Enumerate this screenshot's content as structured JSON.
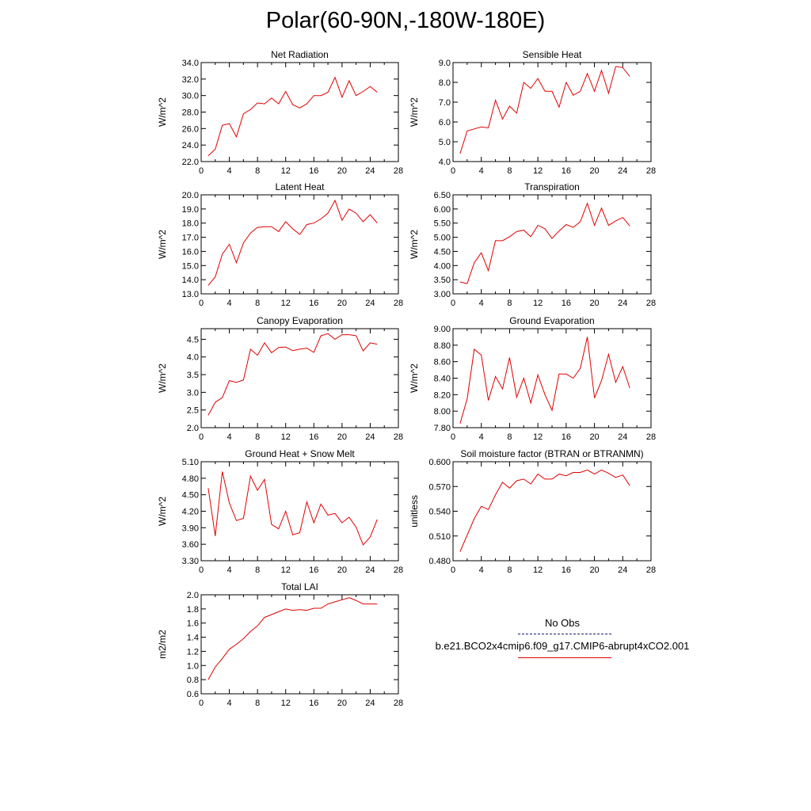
{
  "title": "Polar(60-90N,-180W-180E)",
  "chart_data": [
    {
      "type": "line",
      "title": "Net Radiation",
      "ylabel": "W/m^2",
      "xlim": [
        0,
        28
      ],
      "ylim": [
        22.0,
        34.0
      ],
      "xticks": [
        "0",
        "4",
        "8",
        "12",
        "16",
        "20",
        "24",
        "28"
      ],
      "yticks": [
        "22.0",
        "24.0",
        "26.0",
        "28.0",
        "30.0",
        "32.0",
        "34.0"
      ],
      "x": [
        1,
        2,
        3,
        4,
        5,
        6,
        7,
        8,
        9,
        10,
        11,
        12,
        13,
        14,
        15,
        16,
        17,
        18,
        19,
        20,
        21,
        22,
        23,
        24,
        25
      ],
      "series": [
        {
          "values": [
            22.7,
            23.5,
            26.4,
            26.6,
            25.0,
            27.8,
            28.3,
            29.1,
            29.0,
            29.7,
            29.0,
            30.5,
            28.9,
            28.5,
            29.0,
            30.0,
            30.0,
            30.4,
            32.2,
            29.8,
            31.8,
            30.0,
            30.5,
            31.1,
            30.4
          ]
        }
      ]
    },
    {
      "type": "line",
      "title": "Sensible Heat",
      "ylabel": "W/m^2",
      "xlim": [
        0,
        28
      ],
      "ylim": [
        4.0,
        9.0
      ],
      "xticks": [
        "0",
        "4",
        "8",
        "12",
        "16",
        "20",
        "24",
        "28"
      ],
      "yticks": [
        "4.0",
        "5.0",
        "6.0",
        "7.0",
        "8.0",
        "9.0"
      ],
      "x": [
        1,
        2,
        3,
        4,
        5,
        6,
        7,
        8,
        9,
        10,
        11,
        12,
        13,
        14,
        15,
        16,
        17,
        18,
        19,
        20,
        21,
        22,
        23,
        24,
        25
      ],
      "series": [
        {
          "values": [
            4.4,
            5.55,
            5.65,
            5.75,
            5.7,
            7.1,
            6.15,
            6.8,
            6.45,
            8.0,
            7.7,
            8.2,
            7.55,
            7.55,
            6.75,
            8.0,
            7.35,
            7.55,
            8.45,
            7.55,
            8.6,
            7.45,
            8.8,
            8.75,
            8.3
          ]
        }
      ]
    },
    {
      "type": "line",
      "title": "Latent Heat",
      "ylabel": "W/m^2",
      "xlim": [
        0,
        28
      ],
      "ylim": [
        13.0,
        20.0
      ],
      "xticks": [
        "0",
        "4",
        "8",
        "12",
        "16",
        "20",
        "24",
        "28"
      ],
      "yticks": [
        "13.0",
        "14.0",
        "15.0",
        "16.0",
        "17.0",
        "18.0",
        "19.0",
        "20.0"
      ],
      "x": [
        1,
        2,
        3,
        4,
        5,
        6,
        7,
        8,
        9,
        10,
        11,
        12,
        13,
        14,
        15,
        16,
        17,
        18,
        19,
        20,
        21,
        22,
        23,
        24,
        25
      ],
      "series": [
        {
          "values": [
            13.6,
            14.2,
            15.8,
            16.5,
            15.2,
            16.6,
            17.3,
            17.7,
            17.75,
            17.75,
            17.4,
            18.1,
            17.6,
            17.2,
            17.9,
            18.0,
            18.3,
            18.7,
            19.6,
            18.2,
            19.0,
            18.7,
            18.1,
            18.6,
            18.0
          ]
        }
      ]
    },
    {
      "type": "line",
      "title": "Transpiration",
      "ylabel": "W/m^2",
      "xlim": [
        0,
        28
      ],
      "ylim": [
        3.0,
        6.5
      ],
      "xticks": [
        "0",
        "4",
        "8",
        "12",
        "16",
        "20",
        "24",
        "28"
      ],
      "yticks": [
        "3.00",
        "3.50",
        "4.00",
        "4.50",
        "5.00",
        "5.50",
        "6.00",
        "6.50"
      ],
      "x": [
        1,
        2,
        3,
        4,
        5,
        6,
        7,
        8,
        9,
        10,
        11,
        12,
        13,
        14,
        15,
        16,
        17,
        18,
        19,
        20,
        21,
        22,
        23,
        24,
        25
      ],
      "series": [
        {
          "values": [
            3.42,
            3.36,
            4.1,
            4.45,
            3.82,
            4.88,
            4.88,
            5.02,
            5.2,
            5.25,
            5.02,
            5.42,
            5.3,
            4.96,
            5.22,
            5.45,
            5.35,
            5.55,
            6.2,
            5.42,
            6.03,
            5.42,
            5.58,
            5.7,
            5.4
          ]
        }
      ]
    },
    {
      "type": "line",
      "title": "Canopy Evaporation",
      "ylabel": "W/m^2",
      "xlim": [
        0,
        28
      ],
      "ylim": [
        2.0,
        4.8
      ],
      "xticks": [
        "0",
        "4",
        "8",
        "12",
        "16",
        "20",
        "24",
        "28"
      ],
      "yticks": [
        "2.0",
        "2.5",
        "3.0",
        "3.5",
        "4.0",
        "4.5"
      ],
      "x": [
        1,
        2,
        3,
        4,
        5,
        6,
        7,
        8,
        9,
        10,
        11,
        12,
        13,
        14,
        15,
        16,
        17,
        18,
        19,
        20,
        21,
        22,
        23,
        24,
        25
      ],
      "series": [
        {
          "values": [
            2.35,
            2.72,
            2.85,
            3.33,
            3.28,
            3.35,
            4.22,
            4.05,
            4.4,
            4.12,
            4.27,
            4.28,
            4.18,
            4.22,
            4.25,
            4.13,
            4.6,
            4.66,
            4.5,
            4.63,
            4.63,
            4.6,
            4.17,
            4.4,
            4.36
          ]
        }
      ]
    },
    {
      "type": "line",
      "title": "Ground Evaporation",
      "ylabel": "W/m^2",
      "xlim": [
        0,
        28
      ],
      "ylim": [
        7.8,
        9.0
      ],
      "xticks": [
        "0",
        "4",
        "8",
        "12",
        "16",
        "20",
        "24",
        "28"
      ],
      "yticks": [
        "7.80",
        "8.00",
        "8.20",
        "8.40",
        "8.60",
        "8.80",
        "9.00"
      ],
      "x": [
        1,
        2,
        3,
        4,
        5,
        6,
        7,
        8,
        9,
        10,
        11,
        12,
        13,
        14,
        15,
        16,
        17,
        18,
        19,
        20,
        21,
        22,
        23,
        24,
        25
      ],
      "series": [
        {
          "values": [
            7.85,
            8.15,
            8.75,
            8.68,
            8.13,
            8.42,
            8.27,
            8.65,
            8.17,
            8.4,
            8.1,
            8.44,
            8.2,
            8.01,
            8.45,
            8.45,
            8.4,
            8.52,
            8.9,
            8.16,
            8.37,
            8.69,
            8.35,
            8.54,
            8.28
          ]
        }
      ]
    },
    {
      "type": "line",
      "title": "Ground Heat + Snow Melt",
      "ylabel": "W/m^2",
      "xlim": [
        0,
        28
      ],
      "ylim": [
        3.3,
        5.1
      ],
      "xticks": [
        "0",
        "4",
        "8",
        "12",
        "16",
        "20",
        "24",
        "28"
      ],
      "yticks": [
        "3.30",
        "3.60",
        "3.90",
        "4.20",
        "4.50",
        "4.80",
        "5.10"
      ],
      "x": [
        1,
        2,
        3,
        4,
        5,
        6,
        7,
        8,
        9,
        10,
        11,
        12,
        13,
        14,
        15,
        16,
        17,
        18,
        19,
        20,
        21,
        22,
        23,
        24,
        25
      ],
      "series": [
        {
          "values": [
            4.62,
            3.75,
            4.92,
            4.35,
            4.03,
            4.07,
            4.84,
            4.58,
            4.78,
            3.96,
            3.88,
            4.2,
            3.77,
            3.81,
            4.37,
            3.99,
            4.33,
            4.13,
            4.16,
            3.99,
            4.09,
            3.91,
            3.59,
            3.73,
            4.05
          ]
        }
      ]
    },
    {
      "type": "line",
      "title": "Soil moisture factor (BTRAN or BTRANMN)",
      "ylabel": "unitless",
      "xlim": [
        0,
        28
      ],
      "ylim": [
        0.48,
        0.6
      ],
      "xticks": [
        "0",
        "4",
        "8",
        "12",
        "16",
        "20",
        "24",
        "28"
      ],
      "yticks": [
        "0.480",
        "0.510",
        "0.540",
        "0.570",
        "0.600"
      ],
      "x": [
        1,
        2,
        3,
        4,
        5,
        6,
        7,
        8,
        9,
        10,
        11,
        12,
        13,
        14,
        15,
        16,
        17,
        18,
        19,
        20,
        21,
        22,
        23,
        24,
        25
      ],
      "series": [
        {
          "values": [
            0.491,
            0.511,
            0.531,
            0.546,
            0.542,
            0.56,
            0.575,
            0.568,
            0.577,
            0.579,
            0.573,
            0.585,
            0.579,
            0.579,
            0.585,
            0.583,
            0.587,
            0.587,
            0.59,
            0.585,
            0.59,
            0.586,
            0.581,
            0.584,
            0.571
          ]
        }
      ]
    },
    {
      "type": "line",
      "title": "Total LAI",
      "ylabel": "m2/m2",
      "xlim": [
        0,
        28
      ],
      "ylim": [
        0.6,
        2.0
      ],
      "xticks": [
        "0",
        "4",
        "8",
        "12",
        "16",
        "20",
        "24",
        "28"
      ],
      "yticks": [
        "0.6",
        "0.8",
        "1.0",
        "1.2",
        "1.4",
        "1.6",
        "1.8",
        "2.0"
      ],
      "x": [
        1,
        2,
        3,
        4,
        5,
        6,
        7,
        8,
        9,
        10,
        11,
        12,
        13,
        14,
        15,
        16,
        17,
        18,
        19,
        20,
        21,
        22,
        23,
        24,
        25
      ],
      "series": [
        {
          "values": [
            0.8,
            0.98,
            1.1,
            1.23,
            1.3,
            1.38,
            1.48,
            1.56,
            1.68,
            1.72,
            1.76,
            1.8,
            1.78,
            1.79,
            1.78,
            1.81,
            1.81,
            1.87,
            1.9,
            1.93,
            1.96,
            1.92,
            1.87,
            1.87,
            1.87
          ]
        }
      ]
    }
  ],
  "legend": {
    "obs_label": "No Obs",
    "model_label": "b.e21.BCO2x4cmip6.f09_g17.CMIP6-abrupt4xCO2.001",
    "obs_color": "#1a1a80",
    "model_color": "#e00000"
  }
}
